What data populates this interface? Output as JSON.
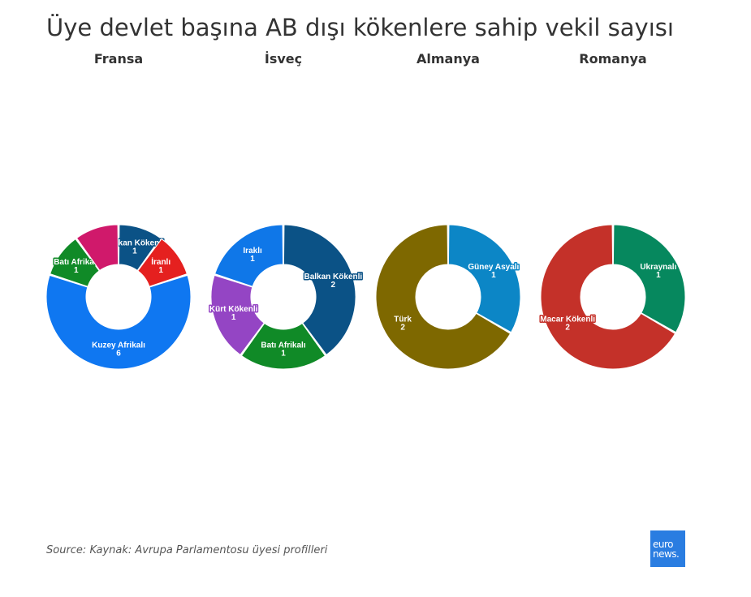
{
  "title": "Üye devlet başına AB dışı kökenlere sahip vekil sayısı",
  "source": "Source: Kaynak: Avrupa Parlamentosu üyesi profilleri",
  "logo": {
    "line1": "euro",
    "line2": "news."
  },
  "chart_data": [
    {
      "type": "pie",
      "title": "Fransa",
      "slices": [
        {
          "label": "Balkan Kökenli",
          "value": 1,
          "color": "#0b5286"
        },
        {
          "label": "İranlı",
          "value": 1,
          "color": "#e5201f"
        },
        {
          "label": "Kuzey Afrikalı",
          "value": 6,
          "color": "#0f77f1"
        },
        {
          "label": "Batı Afrikalı",
          "value": 1,
          "color": "#108a27"
        },
        {
          "label": "",
          "value": 1,
          "color": "#d0196b"
        }
      ]
    },
    {
      "type": "pie",
      "title": "İsveç",
      "slices": [
        {
          "label": "Balkan Kökenli",
          "value": 2,
          "color": "#0b5286"
        },
        {
          "label": "Batı Afrikalı",
          "value": 1,
          "color": "#108a27"
        },
        {
          "label": "Kürt Kökenli",
          "value": 1,
          "color": "#9445c4"
        },
        {
          "label": "Iraklı",
          "value": 1,
          "color": "#0f77e8"
        }
      ]
    },
    {
      "type": "pie",
      "title": "Almanya",
      "slices": [
        {
          "label": "Güney Asyalı",
          "value": 1,
          "color": "#0c86c6"
        },
        {
          "label": "Türk",
          "value": 2,
          "color": "#7e6800"
        }
      ]
    },
    {
      "type": "pie",
      "title": "Romanya",
      "slices": [
        {
          "label": "Ukraynalı",
          "value": 1,
          "color": "#06885e"
        },
        {
          "label": "Macar Kökenli",
          "value": 2,
          "color": "#c43129"
        }
      ]
    }
  ]
}
